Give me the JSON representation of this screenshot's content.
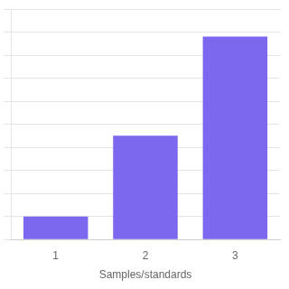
{
  "chart_data": {
    "type": "bar",
    "categories": [
      "1",
      "2",
      "3"
    ],
    "values": [
      10,
      45,
      88
    ],
    "color": "#7B68EE",
    "xlabel": "Samples/standards",
    "ylim": [
      0,
      100
    ],
    "yticks": [
      0,
      10,
      20,
      30,
      40,
      50,
      60,
      70,
      80,
      90,
      100
    ],
    "grid": true,
    "tick_labels": "x"
  }
}
